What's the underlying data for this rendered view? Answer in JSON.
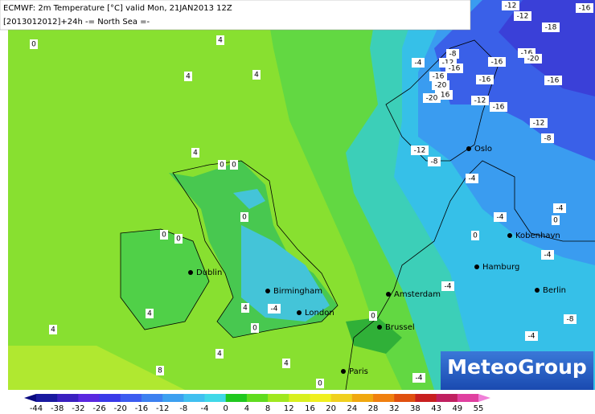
{
  "header": {
    "line1": "ECMWF: 2m Temperature [°C] valid Mon, 21JAN2013 12Z",
    "line2": "[2013012012]+24h -= North Sea =-"
  },
  "logo": "MeteoGroup",
  "cities": [
    "Oslo",
    "Kobenhavn",
    "Hamburg",
    "Berlin",
    "Amsterdam",
    "Brussel",
    "Paris",
    "London",
    "Birmingham",
    "Dublin"
  ],
  "contour_labels": [
    0,
    4,
    4,
    4,
    4,
    0,
    0,
    0,
    0,
    0,
    4,
    4,
    0,
    4,
    -4,
    0,
    4,
    8,
    4,
    0,
    -4,
    -4,
    -4,
    -8,
    -4,
    -4,
    0,
    -4,
    0,
    -4,
    -8,
    -12,
    -8,
    -12,
    -16,
    -16,
    -16,
    -16,
    -20,
    -18,
    -12,
    -12,
    -16,
    -4,
    -8,
    -12,
    -16,
    -16,
    -20,
    -16,
    -20,
    -12,
    -16
  ],
  "colorbar": {
    "labels": [
      -44,
      -38,
      -32,
      -26,
      -20,
      -16,
      -12,
      -8,
      -4,
      0,
      4,
      8,
      12,
      16,
      20,
      24,
      28,
      32,
      38,
      43,
      49,
      55
    ],
    "colors": [
      "#0a0a80",
      "#1a1aa0",
      "#3a20c0",
      "#5a28e0",
      "#3a3ae8",
      "#3c5cf0",
      "#3c80f0",
      "#3ca0f0",
      "#40c0f0",
      "#40d8e8",
      "#20c820",
      "#60dc20",
      "#a0e820",
      "#d8f020",
      "#f0f020",
      "#f0d020",
      "#f0a810",
      "#f08010",
      "#e05010",
      "#c82020",
      "#c02060",
      "#e040a0",
      "#f080d8"
    ]
  }
}
